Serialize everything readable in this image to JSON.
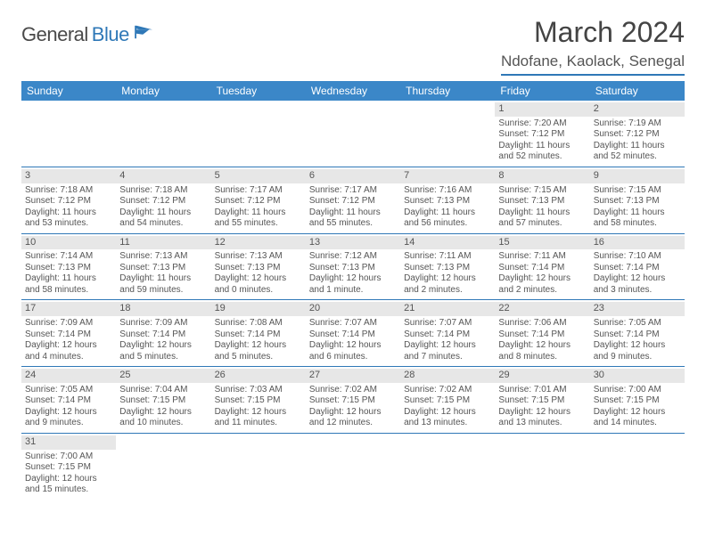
{
  "brand": {
    "general": "General",
    "blue": "Blue"
  },
  "header": {
    "month_title": "March 2024",
    "location": "Ndofane, Kaolack, Senegal"
  },
  "colors": {
    "accent": "#3b87c8",
    "rule": "#2f78b7",
    "daystrip": "#e7e7e7",
    "text": "#555555",
    "bg": "#ffffff"
  },
  "daynames": [
    "Sunday",
    "Monday",
    "Tuesday",
    "Wednesday",
    "Thursday",
    "Friday",
    "Saturday"
  ],
  "weeks": [
    [
      {
        "n": "",
        "sr": "",
        "ss": "",
        "dl1": "",
        "dl2": ""
      },
      {
        "n": "",
        "sr": "",
        "ss": "",
        "dl1": "",
        "dl2": ""
      },
      {
        "n": "",
        "sr": "",
        "ss": "",
        "dl1": "",
        "dl2": ""
      },
      {
        "n": "",
        "sr": "",
        "ss": "",
        "dl1": "",
        "dl2": ""
      },
      {
        "n": "",
        "sr": "",
        "ss": "",
        "dl1": "",
        "dl2": ""
      },
      {
        "n": "1",
        "sr": "Sunrise: 7:20 AM",
        "ss": "Sunset: 7:12 PM",
        "dl1": "Daylight: 11 hours",
        "dl2": "and 52 minutes."
      },
      {
        "n": "2",
        "sr": "Sunrise: 7:19 AM",
        "ss": "Sunset: 7:12 PM",
        "dl1": "Daylight: 11 hours",
        "dl2": "and 52 minutes."
      }
    ],
    [
      {
        "n": "3",
        "sr": "Sunrise: 7:18 AM",
        "ss": "Sunset: 7:12 PM",
        "dl1": "Daylight: 11 hours",
        "dl2": "and 53 minutes."
      },
      {
        "n": "4",
        "sr": "Sunrise: 7:18 AM",
        "ss": "Sunset: 7:12 PM",
        "dl1": "Daylight: 11 hours",
        "dl2": "and 54 minutes."
      },
      {
        "n": "5",
        "sr": "Sunrise: 7:17 AM",
        "ss": "Sunset: 7:12 PM",
        "dl1": "Daylight: 11 hours",
        "dl2": "and 55 minutes."
      },
      {
        "n": "6",
        "sr": "Sunrise: 7:17 AM",
        "ss": "Sunset: 7:12 PM",
        "dl1": "Daylight: 11 hours",
        "dl2": "and 55 minutes."
      },
      {
        "n": "7",
        "sr": "Sunrise: 7:16 AM",
        "ss": "Sunset: 7:13 PM",
        "dl1": "Daylight: 11 hours",
        "dl2": "and 56 minutes."
      },
      {
        "n": "8",
        "sr": "Sunrise: 7:15 AM",
        "ss": "Sunset: 7:13 PM",
        "dl1": "Daylight: 11 hours",
        "dl2": "and 57 minutes."
      },
      {
        "n": "9",
        "sr": "Sunrise: 7:15 AM",
        "ss": "Sunset: 7:13 PM",
        "dl1": "Daylight: 11 hours",
        "dl2": "and 58 minutes."
      }
    ],
    [
      {
        "n": "10",
        "sr": "Sunrise: 7:14 AM",
        "ss": "Sunset: 7:13 PM",
        "dl1": "Daylight: 11 hours",
        "dl2": "and 58 minutes."
      },
      {
        "n": "11",
        "sr": "Sunrise: 7:13 AM",
        "ss": "Sunset: 7:13 PM",
        "dl1": "Daylight: 11 hours",
        "dl2": "and 59 minutes."
      },
      {
        "n": "12",
        "sr": "Sunrise: 7:13 AM",
        "ss": "Sunset: 7:13 PM",
        "dl1": "Daylight: 12 hours",
        "dl2": "and 0 minutes."
      },
      {
        "n": "13",
        "sr": "Sunrise: 7:12 AM",
        "ss": "Sunset: 7:13 PM",
        "dl1": "Daylight: 12 hours",
        "dl2": "and 1 minute."
      },
      {
        "n": "14",
        "sr": "Sunrise: 7:11 AM",
        "ss": "Sunset: 7:13 PM",
        "dl1": "Daylight: 12 hours",
        "dl2": "and 2 minutes."
      },
      {
        "n": "15",
        "sr": "Sunrise: 7:11 AM",
        "ss": "Sunset: 7:14 PM",
        "dl1": "Daylight: 12 hours",
        "dl2": "and 2 minutes."
      },
      {
        "n": "16",
        "sr": "Sunrise: 7:10 AM",
        "ss": "Sunset: 7:14 PM",
        "dl1": "Daylight: 12 hours",
        "dl2": "and 3 minutes."
      }
    ],
    [
      {
        "n": "17",
        "sr": "Sunrise: 7:09 AM",
        "ss": "Sunset: 7:14 PM",
        "dl1": "Daylight: 12 hours",
        "dl2": "and 4 minutes."
      },
      {
        "n": "18",
        "sr": "Sunrise: 7:09 AM",
        "ss": "Sunset: 7:14 PM",
        "dl1": "Daylight: 12 hours",
        "dl2": "and 5 minutes."
      },
      {
        "n": "19",
        "sr": "Sunrise: 7:08 AM",
        "ss": "Sunset: 7:14 PM",
        "dl1": "Daylight: 12 hours",
        "dl2": "and 5 minutes."
      },
      {
        "n": "20",
        "sr": "Sunrise: 7:07 AM",
        "ss": "Sunset: 7:14 PM",
        "dl1": "Daylight: 12 hours",
        "dl2": "and 6 minutes."
      },
      {
        "n": "21",
        "sr": "Sunrise: 7:07 AM",
        "ss": "Sunset: 7:14 PM",
        "dl1": "Daylight: 12 hours",
        "dl2": "and 7 minutes."
      },
      {
        "n": "22",
        "sr": "Sunrise: 7:06 AM",
        "ss": "Sunset: 7:14 PM",
        "dl1": "Daylight: 12 hours",
        "dl2": "and 8 minutes."
      },
      {
        "n": "23",
        "sr": "Sunrise: 7:05 AM",
        "ss": "Sunset: 7:14 PM",
        "dl1": "Daylight: 12 hours",
        "dl2": "and 9 minutes."
      }
    ],
    [
      {
        "n": "24",
        "sr": "Sunrise: 7:05 AM",
        "ss": "Sunset: 7:14 PM",
        "dl1": "Daylight: 12 hours",
        "dl2": "and 9 minutes."
      },
      {
        "n": "25",
        "sr": "Sunrise: 7:04 AM",
        "ss": "Sunset: 7:15 PM",
        "dl1": "Daylight: 12 hours",
        "dl2": "and 10 minutes."
      },
      {
        "n": "26",
        "sr": "Sunrise: 7:03 AM",
        "ss": "Sunset: 7:15 PM",
        "dl1": "Daylight: 12 hours",
        "dl2": "and 11 minutes."
      },
      {
        "n": "27",
        "sr": "Sunrise: 7:02 AM",
        "ss": "Sunset: 7:15 PM",
        "dl1": "Daylight: 12 hours",
        "dl2": "and 12 minutes."
      },
      {
        "n": "28",
        "sr": "Sunrise: 7:02 AM",
        "ss": "Sunset: 7:15 PM",
        "dl1": "Daylight: 12 hours",
        "dl2": "and 13 minutes."
      },
      {
        "n": "29",
        "sr": "Sunrise: 7:01 AM",
        "ss": "Sunset: 7:15 PM",
        "dl1": "Daylight: 12 hours",
        "dl2": "and 13 minutes."
      },
      {
        "n": "30",
        "sr": "Sunrise: 7:00 AM",
        "ss": "Sunset: 7:15 PM",
        "dl1": "Daylight: 12 hours",
        "dl2": "and 14 minutes."
      }
    ],
    [
      {
        "n": "31",
        "sr": "Sunrise: 7:00 AM",
        "ss": "Sunset: 7:15 PM",
        "dl1": "Daylight: 12 hours",
        "dl2": "and 15 minutes."
      },
      {
        "n": "",
        "sr": "",
        "ss": "",
        "dl1": "",
        "dl2": ""
      },
      {
        "n": "",
        "sr": "",
        "ss": "",
        "dl1": "",
        "dl2": ""
      },
      {
        "n": "",
        "sr": "",
        "ss": "",
        "dl1": "",
        "dl2": ""
      },
      {
        "n": "",
        "sr": "",
        "ss": "",
        "dl1": "",
        "dl2": ""
      },
      {
        "n": "",
        "sr": "",
        "ss": "",
        "dl1": "",
        "dl2": ""
      },
      {
        "n": "",
        "sr": "",
        "ss": "",
        "dl1": "",
        "dl2": ""
      }
    ]
  ]
}
